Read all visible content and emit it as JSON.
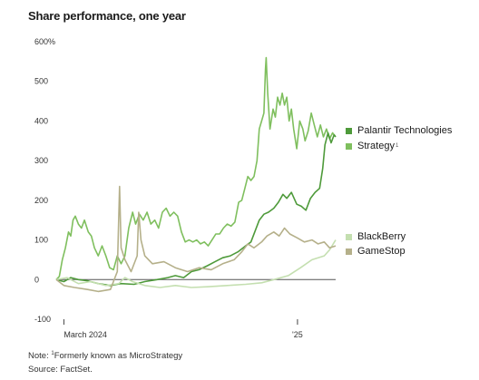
{
  "title": "Share performance, one year",
  "notes": {
    "line1_prefix": "Note: ",
    "line1_marker": "1",
    "line1_text": "Formerly known as MicroStrategy",
    "source": "Source: FactSet."
  },
  "legend": {
    "palantir": "Palantir Technologies",
    "strategy": "Strategy",
    "strategy_marker": "1",
    "blackberry": "BlackBerry",
    "gamestop": "GameStop"
  },
  "chart_data": {
    "type": "line",
    "title": "Share performance, one year",
    "xlabel": "",
    "ylabel": "",
    "x_range": [
      "2024-02-20",
      "2025-02-20"
    ],
    "x_ticks": [
      {
        "date": "2024-03-01",
        "label": "March 2024"
      },
      {
        "date": "2025-01-01",
        "label": "'25"
      }
    ],
    "ylim": [
      -100,
      600
    ],
    "y_ticks": [
      {
        "value": 600,
        "label": "600%"
      },
      {
        "value": 500,
        "label": "500"
      },
      {
        "value": 400,
        "label": "400"
      },
      {
        "value": 300,
        "label": "300"
      },
      {
        "value": 200,
        "label": "200"
      },
      {
        "value": 100,
        "label": "100"
      },
      {
        "value": 0,
        "label": "0"
      },
      {
        "value": -100,
        "label": "-100"
      }
    ],
    "grid": false,
    "legend_position": "right",
    "series": [
      {
        "name": "Strategy",
        "color": "#7fbf5e",
        "points": [
          [
            "2024-02-20",
            0
          ],
          [
            "2024-02-24",
            8
          ],
          [
            "2024-02-28",
            50
          ],
          [
            "2024-03-03",
            80
          ],
          [
            "2024-03-07",
            120
          ],
          [
            "2024-03-10",
            110
          ],
          [
            "2024-03-13",
            150
          ],
          [
            "2024-03-16",
            160
          ],
          [
            "2024-03-20",
            140
          ],
          [
            "2024-03-24",
            130
          ],
          [
            "2024-03-28",
            150
          ],
          [
            "2024-04-02",
            120
          ],
          [
            "2024-04-06",
            110
          ],
          [
            "2024-04-10",
            80
          ],
          [
            "2024-04-15",
            60
          ],
          [
            "2024-04-20",
            85
          ],
          [
            "2024-04-25",
            60
          ],
          [
            "2024-04-30",
            30
          ],
          [
            "2024-05-05",
            25
          ],
          [
            "2024-05-10",
            60
          ],
          [
            "2024-05-15",
            40
          ],
          [
            "2024-05-20",
            60
          ],
          [
            "2024-05-25",
            130
          ],
          [
            "2024-05-30",
            170
          ],
          [
            "2024-06-03",
            140
          ],
          [
            "2024-06-08",
            165
          ],
          [
            "2024-06-13",
            150
          ],
          [
            "2024-06-18",
            170
          ],
          [
            "2024-06-23",
            140
          ],
          [
            "2024-06-28",
            150
          ],
          [
            "2024-07-03",
            130
          ],
          [
            "2024-07-08",
            170
          ],
          [
            "2024-07-13",
            180
          ],
          [
            "2024-07-18",
            160
          ],
          [
            "2024-07-23",
            170
          ],
          [
            "2024-07-28",
            160
          ],
          [
            "2024-08-02",
            120
          ],
          [
            "2024-08-07",
            95
          ],
          [
            "2024-08-12",
            100
          ],
          [
            "2024-08-17",
            95
          ],
          [
            "2024-08-22",
            100
          ],
          [
            "2024-08-27",
            90
          ],
          [
            "2024-09-01",
            95
          ],
          [
            "2024-09-06",
            85
          ],
          [
            "2024-09-11",
            100
          ],
          [
            "2024-09-16",
            115
          ],
          [
            "2024-09-21",
            115
          ],
          [
            "2024-09-26",
            130
          ],
          [
            "2024-10-01",
            140
          ],
          [
            "2024-10-06",
            135
          ],
          [
            "2024-10-11",
            145
          ],
          [
            "2024-10-16",
            195
          ],
          [
            "2024-10-20",
            200
          ],
          [
            "2024-10-24",
            230
          ],
          [
            "2024-10-28",
            260
          ],
          [
            "2024-11-01",
            250
          ],
          [
            "2024-11-05",
            260
          ],
          [
            "2024-11-09",
            300
          ],
          [
            "2024-11-12",
            380
          ],
          [
            "2024-11-15",
            400
          ],
          [
            "2024-11-18",
            420
          ],
          [
            "2024-11-20",
            530
          ],
          [
            "2024-11-21",
            560
          ],
          [
            "2024-11-23",
            470
          ],
          [
            "2024-11-26",
            380
          ],
          [
            "2024-11-30",
            430
          ],
          [
            "2024-12-03",
            410
          ],
          [
            "2024-12-06",
            460
          ],
          [
            "2024-12-09",
            440
          ],
          [
            "2024-12-12",
            470
          ],
          [
            "2024-12-15",
            440
          ],
          [
            "2024-12-18",
            460
          ],
          [
            "2024-12-21",
            400
          ],
          [
            "2024-12-24",
            430
          ],
          [
            "2024-12-27",
            380
          ],
          [
            "2024-12-31",
            330
          ],
          [
            "2025-01-04",
            400
          ],
          [
            "2025-01-08",
            380
          ],
          [
            "2025-01-11",
            350
          ],
          [
            "2025-01-15",
            375
          ],
          [
            "2025-01-19",
            420
          ],
          [
            "2025-01-23",
            390
          ],
          [
            "2025-01-27",
            360
          ],
          [
            "2025-01-31",
            390
          ],
          [
            "2025-02-04",
            360
          ],
          [
            "2025-02-08",
            380
          ],
          [
            "2025-02-12",
            355
          ],
          [
            "2025-02-16",
            370
          ],
          [
            "2025-02-20",
            360
          ]
        ]
      },
      {
        "name": "Palantir Technologies",
        "color": "#4e9a3a",
        "points": [
          [
            "2024-02-20",
            0
          ],
          [
            "2024-03-01",
            -5
          ],
          [
            "2024-03-10",
            5
          ],
          [
            "2024-03-20",
            0
          ],
          [
            "2024-04-01",
            -3
          ],
          [
            "2024-04-15",
            -10
          ],
          [
            "2024-05-01",
            -15
          ],
          [
            "2024-05-15",
            -10
          ],
          [
            "2024-06-01",
            -12
          ],
          [
            "2024-06-15",
            -5
          ],
          [
            "2024-07-01",
            0
          ],
          [
            "2024-07-15",
            5
          ],
          [
            "2024-07-25",
            10
          ],
          [
            "2024-08-05",
            5
          ],
          [
            "2024-08-15",
            20
          ],
          [
            "2024-08-25",
            25
          ],
          [
            "2024-09-05",
            35
          ],
          [
            "2024-09-15",
            45
          ],
          [
            "2024-09-25",
            55
          ],
          [
            "2024-10-05",
            60
          ],
          [
            "2024-10-15",
            70
          ],
          [
            "2024-10-25",
            85
          ],
          [
            "2024-11-01",
            95
          ],
          [
            "2024-11-06",
            120
          ],
          [
            "2024-11-12",
            150
          ],
          [
            "2024-11-18",
            165
          ],
          [
            "2024-11-24",
            170
          ],
          [
            "2024-12-01",
            180
          ],
          [
            "2024-12-07",
            195
          ],
          [
            "2024-12-13",
            215
          ],
          [
            "2024-12-18",
            205
          ],
          [
            "2024-12-24",
            220
          ],
          [
            "2024-12-31",
            190
          ],
          [
            "2025-01-06",
            185
          ],
          [
            "2025-01-12",
            175
          ],
          [
            "2025-01-18",
            205
          ],
          [
            "2025-01-24",
            220
          ],
          [
            "2025-01-30",
            230
          ],
          [
            "2025-02-03",
            280
          ],
          [
            "2025-02-06",
            340
          ],
          [
            "2025-02-10",
            370
          ],
          [
            "2025-02-14",
            345
          ],
          [
            "2025-02-18",
            365
          ],
          [
            "2025-02-20",
            360
          ]
        ]
      },
      {
        "name": "BlackBerry",
        "color": "#c4dfb0",
        "points": [
          [
            "2024-02-20",
            0
          ],
          [
            "2024-03-05",
            5
          ],
          [
            "2024-03-20",
            -10
          ],
          [
            "2024-04-05",
            -5
          ],
          [
            "2024-04-25",
            -15
          ],
          [
            "2024-05-12",
            -10
          ],
          [
            "2024-05-20",
            5
          ],
          [
            "2024-05-30",
            -5
          ],
          [
            "2024-06-15",
            -15
          ],
          [
            "2024-07-05",
            -20
          ],
          [
            "2024-07-25",
            -15
          ],
          [
            "2024-08-15",
            -20
          ],
          [
            "2024-09-05",
            -18
          ],
          [
            "2024-10-01",
            -15
          ],
          [
            "2024-10-25",
            -12
          ],
          [
            "2024-11-15",
            -8
          ],
          [
            "2024-12-01",
            0
          ],
          [
            "2024-12-20",
            10
          ],
          [
            "2025-01-05",
            30
          ],
          [
            "2025-01-20",
            50
          ],
          [
            "2025-02-05",
            60
          ],
          [
            "2025-02-12",
            75
          ],
          [
            "2025-02-20",
            100
          ]
        ]
      },
      {
        "name": "GameStop",
        "color": "#b5b08a",
        "points": [
          [
            "2024-02-20",
            0
          ],
          [
            "2024-03-01",
            -15
          ],
          [
            "2024-03-15",
            -20
          ],
          [
            "2024-04-01",
            -25
          ],
          [
            "2024-04-15",
            -30
          ],
          [
            "2024-05-01",
            -25
          ],
          [
            "2024-05-10",
            20
          ],
          [
            "2024-05-13",
            235
          ],
          [
            "2024-05-15",
            80
          ],
          [
            "2024-05-20",
            50
          ],
          [
            "2024-05-28",
            20
          ],
          [
            "2024-06-05",
            60
          ],
          [
            "2024-06-07",
            170
          ],
          [
            "2024-06-10",
            100
          ],
          [
            "2024-06-15",
            60
          ],
          [
            "2024-06-25",
            40
          ],
          [
            "2024-07-10",
            45
          ],
          [
            "2024-07-25",
            30
          ],
          [
            "2024-08-10",
            20
          ],
          [
            "2024-08-25",
            30
          ],
          [
            "2024-09-10",
            25
          ],
          [
            "2024-09-25",
            40
          ],
          [
            "2024-10-10",
            50
          ],
          [
            "2024-10-20",
            70
          ],
          [
            "2024-10-28",
            90
          ],
          [
            "2024-11-05",
            80
          ],
          [
            "2024-11-15",
            95
          ],
          [
            "2024-11-22",
            110
          ],
          [
            "2024-12-01",
            120
          ],
          [
            "2024-12-08",
            110
          ],
          [
            "2024-12-15",
            130
          ],
          [
            "2024-12-22",
            115
          ],
          [
            "2025-01-01",
            105
          ],
          [
            "2025-01-10",
            95
          ],
          [
            "2025-01-20",
            100
          ],
          [
            "2025-01-28",
            90
          ],
          [
            "2025-02-05",
            95
          ],
          [
            "2025-02-12",
            80
          ],
          [
            "2025-02-20",
            85
          ]
        ]
      }
    ]
  }
}
